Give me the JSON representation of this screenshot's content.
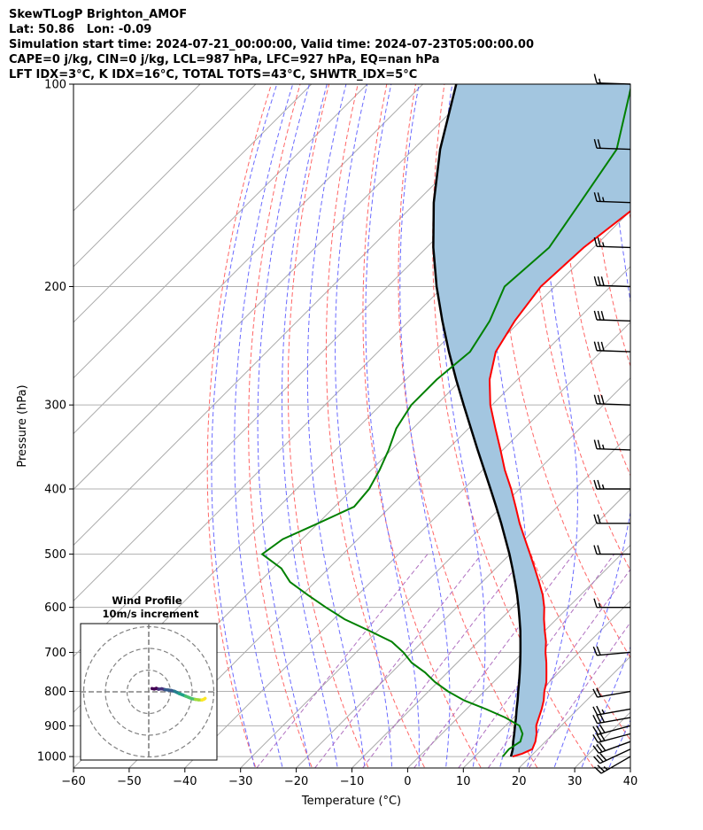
{
  "header": {
    "lines": [
      "SkewTLogP Brighton_AMOF",
      "Lat: 50.86   Lon: -0.09",
      "Simulation start time: 2024-07-21_00:00:00, Valid time: 2024-07-23T05:00:00.00",
      "CAPE=0 j/kg, CIN=0 j/kg, LCL=987 hPa, LFC=927 hPa, EQ=nan hPa",
      "LFT IDX=3°C, K IDX=16°C, TOTAL TOTS=43°C, SHWTR_IDX=5°C"
    ]
  },
  "chart_data": {
    "type": "line",
    "subtype": "skew-t log-p",
    "xlabel": "Temperature (°C)",
    "ylabel": "Pressure (hPa)",
    "xlim": [
      -60,
      40
    ],
    "ylim": [
      1040,
      100
    ],
    "y_scale": "log",
    "x_ticks": [
      -60,
      -50,
      -40,
      -30,
      -20,
      -10,
      0,
      10,
      20,
      30,
      40
    ],
    "x_tick_labels": [
      "−60",
      "−50",
      "−40",
      "−30",
      "−20",
      "−10",
      "0",
      "10",
      "20",
      "30",
      "40"
    ],
    "y_ticks": [
      1000,
      900,
      800,
      700,
      600,
      500,
      400,
      300,
      200,
      100
    ],
    "grid": true,
    "colors": {
      "temperature": "#ff0000",
      "dewpoint": "#008000",
      "parcel": "#000000",
      "cape_fill": "#a3c6e0",
      "dry_adiabat": "#ff6666",
      "moist_adiabat": "#6a6aff",
      "mixing_ratio": "#b070c0",
      "isotherm": "#aaaaaa"
    },
    "series": [
      {
        "key": "temperature",
        "pressure": [
          1000,
          990,
          975,
          950,
          925,
          900,
          875,
          850,
          825,
          800,
          775,
          750,
          725,
          700,
          675,
          650,
          625,
          600,
          575,
          550,
          525,
          500,
          475,
          450,
          425,
          400,
          375,
          350,
          325,
          300,
          275,
          250,
          225,
          200,
          175,
          150,
          125,
          100
        ],
        "temp": [
          16.8,
          18,
          19,
          18.2,
          17,
          15.5,
          14.5,
          13.5,
          12.3,
          10.8,
          9.5,
          7.8,
          6,
          4,
          2.2,
          0,
          -2.2,
          -4.3,
          -6.8,
          -9.8,
          -13,
          -16.4,
          -20,
          -23.8,
          -27.5,
          -31.5,
          -36,
          -40.4,
          -45.2,
          -50.3,
          -55,
          -58.9,
          -61,
          -62.5,
          -61.8,
          -59.5,
          -58,
          -59.5
        ]
      },
      {
        "key": "dewpoint",
        "pressure": [
          1000,
          975,
          950,
          925,
          900,
          875,
          850,
          825,
          800,
          775,
          750,
          725,
          700,
          675,
          650,
          625,
          600,
          575,
          550,
          525,
          500,
          475,
          450,
          425,
          400,
          375,
          350,
          325,
          300,
          275,
          250,
          225,
          200,
          175,
          150,
          125,
          100
        ],
        "temp": [
          15,
          14.8,
          15.5,
          14.5,
          12.5,
          8.5,
          3.5,
          -2,
          -6.5,
          -10.5,
          -14,
          -18.2,
          -21.5,
          -25.5,
          -31.5,
          -38,
          -43.5,
          -49,
          -54.5,
          -58.5,
          -64.5,
          -63.5,
          -60,
          -56.5,
          -57,
          -58.5,
          -60.5,
          -63,
          -64.5,
          -64.5,
          -63.5,
          -65.5,
          -69,
          -68,
          -70.5,
          -73.5,
          -82.5
        ]
      },
      {
        "key": "parcel",
        "pressure": [
          1000,
          975,
          950,
          925,
          900,
          875,
          850,
          825,
          800,
          775,
          750,
          725,
          700,
          675,
          650,
          625,
          600,
          575,
          550,
          525,
          500,
          475,
          450,
          425,
          400,
          375,
          350,
          325,
          300,
          275,
          250,
          225,
          200,
          175,
          150,
          125,
          100
        ],
        "temp": [
          16.5,
          15.5,
          14.2,
          13,
          11.7,
          10.4,
          9,
          7.6,
          6.1,
          4.6,
          3,
          1.3,
          -0.5,
          -2.4,
          -4.4,
          -6.6,
          -8.9,
          -11.4,
          -14.1,
          -17,
          -20.1,
          -23.5,
          -27.1,
          -31,
          -35.2,
          -39.7,
          -44.5,
          -49.6,
          -55.1,
          -61,
          -67.3,
          -74,
          -81.2,
          -88.8,
          -96.8,
          -105.2,
          -114
        ]
      }
    ],
    "wind_barbs": {
      "pressure": [
        1000,
        975,
        950,
        925,
        900,
        875,
        850,
        800,
        700,
        600,
        500,
        450,
        400,
        350,
        300,
        250,
        225,
        200,
        175,
        150,
        125,
        100
      ],
      "speed_kt": [
        25,
        30,
        30,
        30,
        30,
        30,
        25,
        20,
        20,
        15,
        20,
        20,
        25,
        25,
        30,
        30,
        30,
        30,
        25,
        25,
        20,
        15
      ],
      "direction_deg": [
        240,
        245,
        250,
        255,
        255,
        260,
        260,
        260,
        265,
        270,
        270,
        270,
        270,
        272,
        272,
        272,
        272,
        272,
        272,
        272,
        272,
        272
      ]
    },
    "inset": {
      "title": "Wind Profile",
      "subtitle": "10m/s increment",
      "rings_ms": [
        10,
        20,
        30
      ],
      "hodograph_u": [
        1.5,
        2.5,
        3.5,
        4.5,
        6,
        7.5,
        9,
        10.5,
        12,
        13,
        14,
        15.5,
        17,
        18.5,
        20,
        21.5,
        23,
        24.5,
        25.5,
        26
      ],
      "hodograph_v": [
        1.5,
        1.3,
        1.6,
        1.2,
        1.4,
        1,
        0.8,
        0.6,
        0.2,
        -0.3,
        -0.8,
        -1.4,
        -2,
        -2.6,
        -3.2,
        -3.5,
        -3.7,
        -3.8,
        -3.4,
        -3
      ]
    }
  }
}
